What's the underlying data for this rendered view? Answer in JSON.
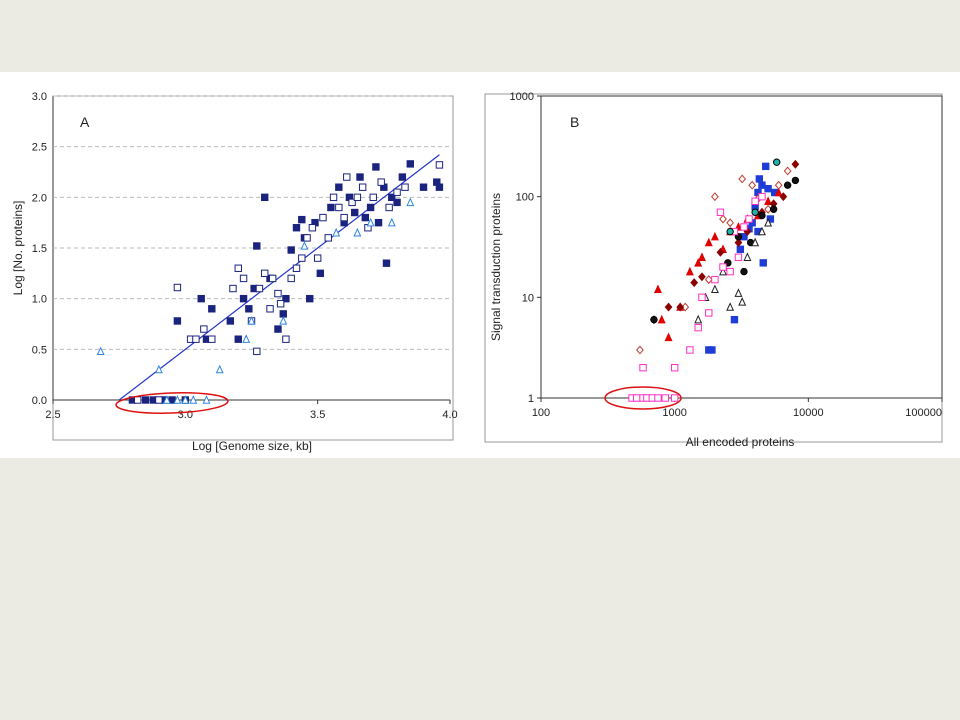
{
  "chart_data": [
    {
      "type": "scatter",
      "panel_label": "A",
      "xlabel": "Log [Genome size, kb]",
      "ylabel": "Log [No. proteins]",
      "xlim": [
        2.5,
        4.0
      ],
      "ylim": [
        0.0,
        3.0
      ],
      "xticks": [
        "2.5",
        "3.0",
        "3.5",
        "4.0"
      ],
      "yticks": [
        "0.0",
        "0.5",
        "1.0",
        "1.5",
        "2.0",
        "2.5",
        "3.0"
      ],
      "grid": "horizontal-dashed",
      "trendline": {
        "x": [
          2.75,
          3.96
        ],
        "y": [
          0.0,
          2.42
        ]
      },
      "series": [
        {
          "marker": "filled-square",
          "color": "#1a237e",
          "points": [
            [
              2.8,
              0.0
            ],
            [
              2.85,
              0.0
            ],
            [
              2.88,
              0.0
            ],
            [
              2.92,
              0.0
            ],
            [
              2.95,
              0.0
            ],
            [
              3.0,
              0.0
            ],
            [
              2.97,
              0.78
            ],
            [
              3.06,
              1.0
            ],
            [
              3.08,
              0.6
            ],
            [
              3.1,
              0.9
            ],
            [
              3.17,
              0.78
            ],
            [
              3.2,
              0.6
            ],
            [
              3.22,
              1.0
            ],
            [
              3.24,
              0.9
            ],
            [
              3.26,
              1.1
            ],
            [
              3.27,
              1.52
            ],
            [
              3.3,
              2.0
            ],
            [
              3.32,
              1.2
            ],
            [
              3.35,
              0.7
            ],
            [
              3.37,
              0.85
            ],
            [
              3.38,
              1.0
            ],
            [
              3.4,
              1.48
            ],
            [
              3.42,
              1.7
            ],
            [
              3.44,
              1.78
            ],
            [
              3.45,
              1.6
            ],
            [
              3.47,
              1.0
            ],
            [
              3.49,
              1.75
            ],
            [
              3.51,
              1.25
            ],
            [
              3.55,
              1.9
            ],
            [
              3.58,
              2.1
            ],
            [
              3.6,
              1.75
            ],
            [
              3.62,
              2.0
            ],
            [
              3.64,
              1.85
            ],
            [
              3.66,
              2.2
            ],
            [
              3.68,
              1.8
            ],
            [
              3.7,
              1.9
            ],
            [
              3.72,
              2.3
            ],
            [
              3.73,
              1.75
            ],
            [
              3.75,
              2.1
            ],
            [
              3.76,
              1.35
            ],
            [
              3.78,
              2.0
            ],
            [
              3.8,
              1.95
            ],
            [
              3.82,
              2.2
            ],
            [
              3.85,
              2.33
            ],
            [
              3.9,
              2.1
            ],
            [
              3.95,
              2.15
            ],
            [
              3.96,
              2.1
            ]
          ]
        },
        {
          "marker": "open-square",
          "color": "#1a237e",
          "points": [
            [
              2.82,
              0.0
            ],
            [
              2.9,
              0.0
            ],
            [
              2.97,
              1.11
            ],
            [
              3.02,
              0.6
            ],
            [
              3.04,
              0.6
            ],
            [
              3.07,
              0.7
            ],
            [
              3.1,
              0.6
            ],
            [
              3.18,
              1.1
            ],
            [
              3.2,
              1.3
            ],
            [
              3.22,
              1.2
            ],
            [
              3.25,
              0.78
            ],
            [
              3.27,
              0.48
            ],
            [
              3.28,
              1.1
            ],
            [
              3.3,
              1.25
            ],
            [
              3.32,
              0.9
            ],
            [
              3.33,
              1.2
            ],
            [
              3.35,
              1.05
            ],
            [
              3.36,
              0.95
            ],
            [
              3.38,
              0.6
            ],
            [
              3.4,
              1.2
            ],
            [
              3.42,
              1.3
            ],
            [
              3.44,
              1.4
            ],
            [
              3.46,
              1.6
            ],
            [
              3.48,
              1.7
            ],
            [
              3.5,
              1.4
            ],
            [
              3.52,
              1.8
            ],
            [
              3.54,
              1.6
            ],
            [
              3.56,
              2.0
            ],
            [
              3.58,
              1.9
            ],
            [
              3.6,
              1.8
            ],
            [
              3.61,
              2.2
            ],
            [
              3.63,
              1.95
            ],
            [
              3.65,
              2.0
            ],
            [
              3.67,
              2.1
            ],
            [
              3.69,
              1.7
            ],
            [
              3.71,
              2.0
            ],
            [
              3.74,
              2.15
            ],
            [
              3.77,
              1.9
            ],
            [
              3.8,
              2.05
            ],
            [
              3.83,
              2.1
            ],
            [
              3.96,
              2.32
            ]
          ]
        },
        {
          "marker": "open-triangle",
          "color": "#2e86de",
          "points": [
            [
              2.68,
              0.48
            ],
            [
              2.9,
              0.3
            ],
            [
              2.93,
              0.0
            ],
            [
              2.97,
              0.0
            ],
            [
              3.0,
              0.0
            ],
            [
              3.03,
              0.0
            ],
            [
              3.08,
              0.0
            ],
            [
              3.13,
              0.3
            ],
            [
              3.23,
              0.6
            ],
            [
              3.25,
              0.78
            ],
            [
              3.37,
              0.78
            ],
            [
              3.45,
              1.52
            ],
            [
              3.57,
              1.65
            ],
            [
              3.65,
              1.65
            ],
            [
              3.7,
              1.75
            ],
            [
              3.78,
              1.75
            ],
            [
              3.85,
              1.95
            ]
          ]
        }
      ],
      "annotation": "red-hand-drawn-circle-around-points-at-y-0"
    },
    {
      "type": "scatter",
      "panel_label": "B",
      "xlabel": "All encoded proteins",
      "ylabel": "Signal transduction proteins",
      "xscale": "log",
      "yscale": "log",
      "xlim": [
        100,
        100000
      ],
      "ylim": [
        1,
        1000
      ],
      "xticks": [
        "100",
        "1000",
        "10000",
        "100000"
      ],
      "yticks": [
        "1",
        "10",
        "100",
        "1000"
      ],
      "grid": "none",
      "series": [
        {
          "marker": "filled-square",
          "color": "#1f3dd6",
          "points": [
            [
              1800,
              3
            ],
            [
              1900,
              3
            ],
            [
              2800,
              6
            ],
            [
              3100,
              30
            ],
            [
              3300,
              40
            ],
            [
              3600,
              48
            ],
            [
              3800,
              55
            ],
            [
              4000,
              80
            ],
            [
              4200,
              110
            ],
            [
              4300,
              150
            ],
            [
              4500,
              130
            ],
            [
              4800,
              200
            ],
            [
              5000,
              120
            ],
            [
              5200,
              60
            ],
            [
              5600,
              110
            ],
            [
              4600,
              22
            ],
            [
              4200,
              45
            ]
          ]
        },
        {
          "marker": "filled-triangle",
          "color": "#e00000",
          "points": [
            [
              750,
              12
            ],
            [
              800,
              6
            ],
            [
              900,
              4
            ],
            [
              1100,
              8
            ],
            [
              1300,
              18
            ],
            [
              1500,
              22
            ],
            [
              1600,
              25
            ],
            [
              1800,
              35
            ],
            [
              2000,
              40
            ],
            [
              2300,
              30
            ],
            [
              2600,
              45
            ],
            [
              3000,
              50
            ],
            [
              3500,
              60
            ],
            [
              4200,
              65
            ],
            [
              5000,
              90
            ],
            [
              6000,
              110
            ]
          ]
        },
        {
          "marker": "open-diamond",
          "color": "#c0392b",
          "points": [
            [
              550,
              3
            ],
            [
              1200,
              8
            ],
            [
              1800,
              15
            ],
            [
              2000,
              100
            ],
            [
              2300,
              60
            ],
            [
              2600,
              55
            ],
            [
              3200,
              150
            ],
            [
              3800,
              130
            ],
            [
              4200,
              95
            ],
            [
              5000,
              75
            ],
            [
              6000,
              130
            ],
            [
              7000,
              180
            ]
          ]
        },
        {
          "marker": "filled-diamond",
          "color": "#8b0000",
          "points": [
            [
              700,
              6
            ],
            [
              900,
              8
            ],
            [
              1100,
              8
            ],
            [
              1400,
              14
            ],
            [
              1600,
              16
            ],
            [
              2200,
              28
            ],
            [
              3000,
              35
            ],
            [
              3500,
              45
            ],
            [
              4500,
              70
            ],
            [
              5500,
              85
            ],
            [
              6500,
              100
            ],
            [
              8000,
              210
            ]
          ]
        },
        {
          "marker": "filled-circle",
          "color": "#111111",
          "points": [
            [
              700,
              6
            ],
            [
              2500,
              22
            ],
            [
              3000,
              40
            ],
            [
              3300,
              18
            ],
            [
              3700,
              35
            ],
            [
              4500,
              65
            ],
            [
              5500,
              75
            ],
            [
              7000,
              130
            ],
            [
              8000,
              145
            ]
          ]
        },
        {
          "marker": "open-triangle",
          "color": "#222222",
          "points": [
            [
              1500,
              6
            ],
            [
              1700,
              10
            ],
            [
              2000,
              12
            ],
            [
              2300,
              18
            ],
            [
              2600,
              8
            ],
            [
              3000,
              11
            ],
            [
              3200,
              9
            ],
            [
              3500,
              25
            ],
            [
              4000,
              35
            ],
            [
              4500,
              45
            ],
            [
              5000,
              55
            ]
          ]
        },
        {
          "marker": "open-square",
          "color": "#ff2fc4",
          "points": [
            [
              480,
              1
            ],
            [
              520,
              1
            ],
            [
              580,
              1
            ],
            [
              620,
              1
            ],
            [
              680,
              1
            ],
            [
              750,
              1
            ],
            [
              850,
              1
            ],
            [
              1000,
              1
            ],
            [
              580,
              2
            ],
            [
              1000,
              2
            ],
            [
              1300,
              3
            ],
            [
              1500,
              5
            ],
            [
              1600,
              10
            ],
            [
              1800,
              7
            ],
            [
              2000,
              15
            ],
            [
              2300,
              20
            ],
            [
              2600,
              18
            ],
            [
              3000,
              25
            ],
            [
              3300,
              50
            ],
            [
              3600,
              60
            ],
            [
              4000,
              90
            ],
            [
              4500,
              100
            ],
            [
              2200,
              70
            ],
            [
              2800,
              45
            ]
          ]
        },
        {
          "marker": "filled-circle",
          "color": "#20b2aa",
          "points": [
            [
              2600,
              45
            ],
            [
              4000,
              70
            ],
            [
              5800,
              220
            ]
          ]
        }
      ],
      "annotation": "red-hand-drawn-circle-around-points-at-y-1"
    }
  ]
}
